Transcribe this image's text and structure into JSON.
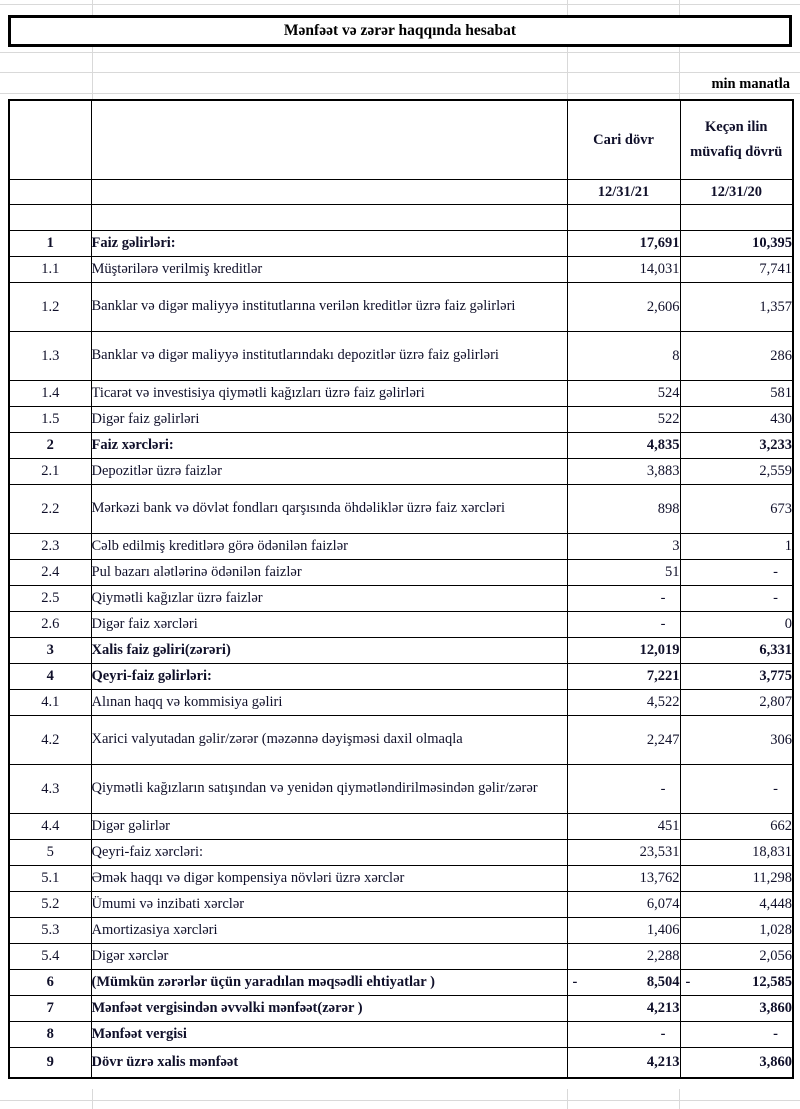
{
  "title": "Mənfəət və zərər haqqında hesabat",
  "unit_note": "min manatla",
  "table": {
    "headers": {
      "col_current": "Cari dövr",
      "col_previous": "Keçən ilin müvafiq dövrü"
    },
    "dates": {
      "current": "12/31/21",
      "previous": "12/31/20"
    },
    "rows": [
      {
        "no": "1",
        "label": "Faiz gəlirləri:",
        "current": "17,691",
        "previous": "10,395",
        "bold": true
      },
      {
        "no": "1.1",
        "label": "Müştərilərə verilmiş kreditlər",
        "current": "14,031",
        "previous": "7,741"
      },
      {
        "no": "1.2",
        "label": "Banklar və digər maliyyə institutlarına verilən kreditlər üzrə faiz gəlirləri",
        "current": "2,606",
        "previous": "1,357",
        "tall": true
      },
      {
        "no": "1.3",
        "label": "Banklar və digər maliyyə institutlarındakı depozitlər üzrə faiz gəlirləri",
        "current": "8",
        "previous": "286",
        "tall": true
      },
      {
        "no": "1.4",
        "label": "Ticarət və investisiya qiymətli kağızları üzrə faiz gəlirləri",
        "current": "524",
        "previous": "581"
      },
      {
        "no": "1.5",
        "label": "Digər faiz gəlirləri",
        "current": "522",
        "previous": "430"
      },
      {
        "no": "2",
        "label": "Faiz xərcləri:",
        "current": "4,835",
        "previous": "3,233",
        "bold": true
      },
      {
        "no": "2.1",
        "label": "Depozitlər üzrə faizlər",
        "current": "3,883",
        "previous": "2,559"
      },
      {
        "no": "2.2",
        "label": "Mərkəzi bank və dövlət fondları qarşısında öhdəliklər üzrə faiz xərcləri",
        "current": "898",
        "previous": "673",
        "tall": true
      },
      {
        "no": "2.3",
        "label": "Cəlb edilmiş kreditlərə görə ödənilən faizlər",
        "current": "3",
        "previous": "1"
      },
      {
        "no": "2.4",
        "label": "Pul bazarı alətlərinə ödənilən faizlər",
        "current": "51",
        "previous": "-"
      },
      {
        "no": "2.5",
        "label": "Qiymətli kağızlar üzrə faizlər",
        "current": "-",
        "previous": "-"
      },
      {
        "no": "2.6",
        "label": "Digər faiz xərcləri",
        "current": "-",
        "previous": "0"
      },
      {
        "no": "3",
        "label": "Xalis faiz gəliri(zərəri)",
        "current": "12,019",
        "previous": "6,331",
        "bold": true
      },
      {
        "no": "4",
        "label": "Qeyri-faiz gəlirləri:",
        "current": "7,221",
        "previous": "3,775",
        "bold": true
      },
      {
        "no": "4.1",
        "label": "Alınan haqq və kommisiya gəliri",
        "current": "4,522",
        "previous": "2,807"
      },
      {
        "no": "4.2",
        "label": "Xarici valyutadan gəlir/zərər (məzənnə dəyişməsi daxil olmaqla",
        "current": "2,247",
        "previous": "306",
        "tall": true
      },
      {
        "no": "4.3",
        "label": "Qiymətli kağızların satışından və yenidən qiymətləndirilməsindən gəlir/zərər",
        "current": "-",
        "previous": "-",
        "tall": true
      },
      {
        "no": "4.4",
        "label": "Digər gəlirlər",
        "current": "451",
        "previous": "662"
      },
      {
        "no": "5",
        "label": "Qeyri-faiz xərcləri:",
        "current": "23,531",
        "previous": "18,831"
      },
      {
        "no": "5.1",
        "label": "Əmək haqqı və digər kompensiya növləri üzrə xərclər",
        "current": "13,762",
        "previous": "11,298"
      },
      {
        "no": "5.2",
        "label": "Ümumi və inzibati xərclər",
        "current": "6,074",
        "previous": "4,448"
      },
      {
        "no": "5.3",
        "label": "Amortizasiya xərcləri",
        "current": "1,406",
        "previous": "1,028"
      },
      {
        "no": "5.4",
        "label": "Digər xərclər",
        "current": "2,288",
        "previous": "2,056"
      },
      {
        "no": "6",
        "label": "(Mümkün zərərlər üçün yaradılan məqsədli ehtiyatlar )",
        "current": "8,504",
        "previous": "12,585",
        "bold": true,
        "negative": true
      },
      {
        "no": "7",
        "label": "Mənfəət vergisindən əvvəlki mənfəət(zərər )",
        "current": "4,213",
        "previous": "3,860",
        "bold": true
      },
      {
        "no": "8",
        "label": "Mənfəət vergisi",
        "current": "-",
        "previous": "-",
        "bold": true
      },
      {
        "no": "9",
        "label": "Dövr üzrə xalis mənfəət",
        "current": "4,213",
        "previous": "3,860",
        "bold": true,
        "last": true
      }
    ]
  }
}
